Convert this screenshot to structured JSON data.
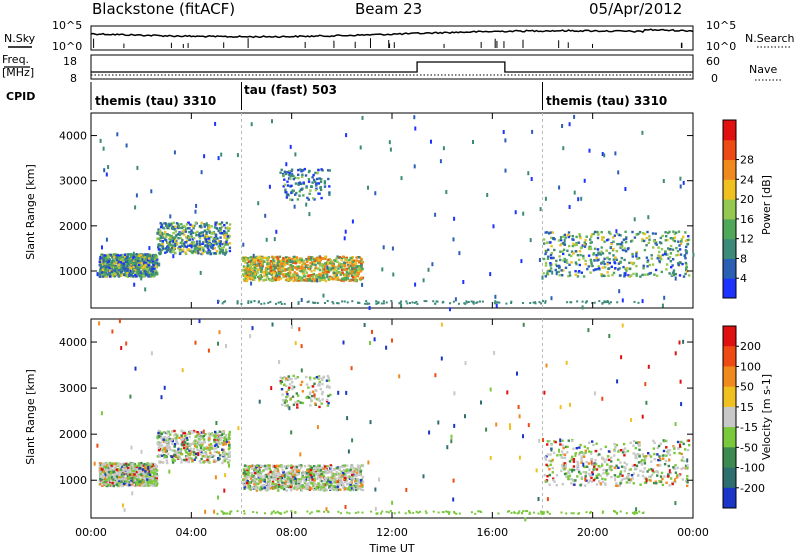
{
  "header": {
    "station": "Blackstone (fitACF)",
    "beam": "Beam 23",
    "date": "05/Apr/2012"
  },
  "noise_panel": {
    "left_label": "N.Sky",
    "right_label": "N.Search",
    "left_ticks": [
      "10^5",
      "10^0"
    ],
    "right_ticks": [
      "10^5",
      "10^0"
    ]
  },
  "freq_panel": {
    "left_label_1": "Freq.",
    "left_label_2": "[MHz]",
    "right_label": "Nave",
    "left_ticks": [
      "18",
      "8"
    ],
    "right_ticks": [
      "60",
      "0"
    ]
  },
  "cpid_panel": {
    "label": "CPID",
    "modes": [
      {
        "text": "themis (tau) 3310"
      },
      {
        "text": "tau (fast) 503"
      },
      {
        "text": "themis (tau) 3310"
      }
    ]
  },
  "chart_data": [
    {
      "type": "heatmap",
      "ylabel": "Slant Range [km]",
      "ylim": [
        180,
        4500
      ],
      "xlim_hours": [
        0,
        24
      ],
      "yticks": [
        "1000",
        "2000",
        "3000",
        "4000"
      ],
      "colorbar": {
        "label": "Power [dB]",
        "ticks": [
          "4",
          "8",
          "12",
          "16",
          "20",
          "24",
          "28"
        ],
        "colors": [
          "#1e32ff",
          "#2a5fb4",
          "#3c8a7a",
          "#4fa85a",
          "#94c850",
          "#f0c020",
          "#f08a1e",
          "#ee4a14",
          "#e01010"
        ]
      },
      "scatter_regions": [
        {
          "t": [
            0.3,
            2.6
          ],
          "r": [
            900,
            1400
          ],
          "density": "high",
          "level": "mid"
        },
        {
          "t": [
            2.6,
            5.5
          ],
          "r": [
            1400,
            2100
          ],
          "density": "medium",
          "level": "mid"
        },
        {
          "t": [
            6.0,
            10.8
          ],
          "r": [
            800,
            1350
          ],
          "density": "high",
          "level": "high"
        },
        {
          "t": [
            7.5,
            9.5
          ],
          "r": [
            2600,
            3300
          ],
          "density": "low",
          "level": "low"
        },
        {
          "t": [
            18.0,
            23.8
          ],
          "r": [
            900,
            1900
          ],
          "density": "medium",
          "level": "mid"
        }
      ]
    },
    {
      "type": "heatmap",
      "ylabel": "Slant Range [km]",
      "ylim": [
        180,
        4500
      ],
      "xlim_hours": [
        0,
        24
      ],
      "yticks": [
        "1000",
        "2000",
        "3000",
        "4000"
      ],
      "colorbar": {
        "label": "Velocity [m s-1]",
        "ticks": [
          "200",
          "100",
          "50",
          "15",
          "-15",
          "-50",
          "-100",
          "-200"
        ],
        "colors": [
          "#1a36c8",
          "#2f6e6e",
          "#3c8a50",
          "#7ac83c",
          "#c8c8c8",
          "#f0c020",
          "#f08a1e",
          "#ee4a14",
          "#e01010"
        ]
      },
      "xlabel": "Time UT",
      "xticks": [
        "00:00",
        "04:00",
        "08:00",
        "12:00",
        "16:00",
        "20:00",
        "00:00"
      ]
    }
  ],
  "noise_series": {
    "mode_change_hours": [
      6.0,
      18.0
    ],
    "nave_step": {
      "start_hour": 13.0,
      "end_hour": 16.5
    }
  }
}
